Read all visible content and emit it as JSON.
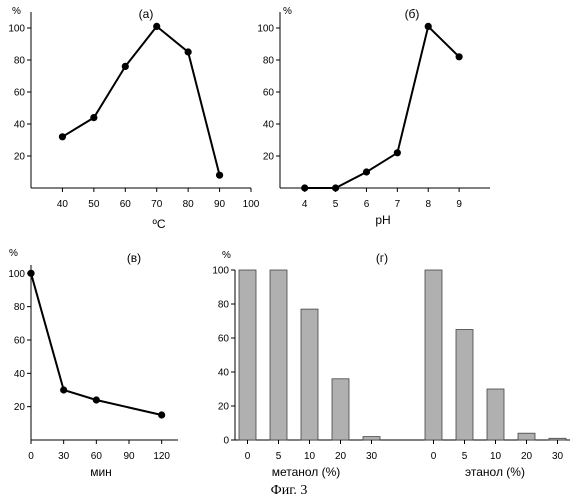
{
  "caption": "Фиг. 3",
  "chart_data": [
    {
      "id": "a",
      "type": "line",
      "label": "(а)",
      "ylabel": "%",
      "xlabel": "ºC",
      "x": [
        40,
        50,
        60,
        70,
        80,
        90
      ],
      "values": [
        32,
        44,
        76,
        101,
        85,
        8
      ],
      "xticks": [
        40,
        50,
        60,
        70,
        80,
        90,
        100
      ],
      "yticks": [
        20,
        40,
        60,
        80,
        100
      ],
      "xlim": [
        30,
        100
      ],
      "ylim": [
        0,
        110
      ],
      "grid": false
    },
    {
      "id": "b",
      "type": "line",
      "label": "(б)",
      "ylabel": "%",
      "xlabel": "pH",
      "x": [
        4,
        5,
        6,
        7,
        8,
        9
      ],
      "values": [
        0,
        0,
        10,
        22,
        101,
        82
      ],
      "xticks": [
        4,
        5,
        6,
        7,
        8,
        9
      ],
      "yticks": [
        20,
        40,
        60,
        80,
        100
      ],
      "xlim": [
        3.2,
        10
      ],
      "ylim": [
        0,
        110
      ],
      "grid": false
    },
    {
      "id": "v",
      "type": "line",
      "label": "(в)",
      "ylabel": "%",
      "xlabel": "мин",
      "x": [
        0,
        30,
        60,
        120
      ],
      "values": [
        100,
        30,
        24,
        15
      ],
      "xticks": [
        0,
        30,
        60,
        90,
        120
      ],
      "yticks": [
        20,
        40,
        60,
        80,
        100
      ],
      "xlim": [
        0,
        135
      ],
      "ylim": [
        0,
        105
      ],
      "grid": false
    },
    {
      "id": "g",
      "type": "bar",
      "label": "(г)",
      "ylabel": "%",
      "yticks": [
        0,
        20,
        40,
        60,
        80,
        100
      ],
      "ylim": [
        0,
        100
      ],
      "grid": false,
      "groups": [
        {
          "name": "метанол (%)",
          "categories": [
            "0",
            "5",
            "10",
            "20",
            "30"
          ],
          "values": [
            100,
            100,
            77,
            36,
            2
          ]
        },
        {
          "name": "этанол (%)",
          "categories": [
            "0",
            "5",
            "10",
            "20",
            "30"
          ],
          "values": [
            100,
            65,
            30,
            4,
            1
          ]
        }
      ]
    }
  ]
}
